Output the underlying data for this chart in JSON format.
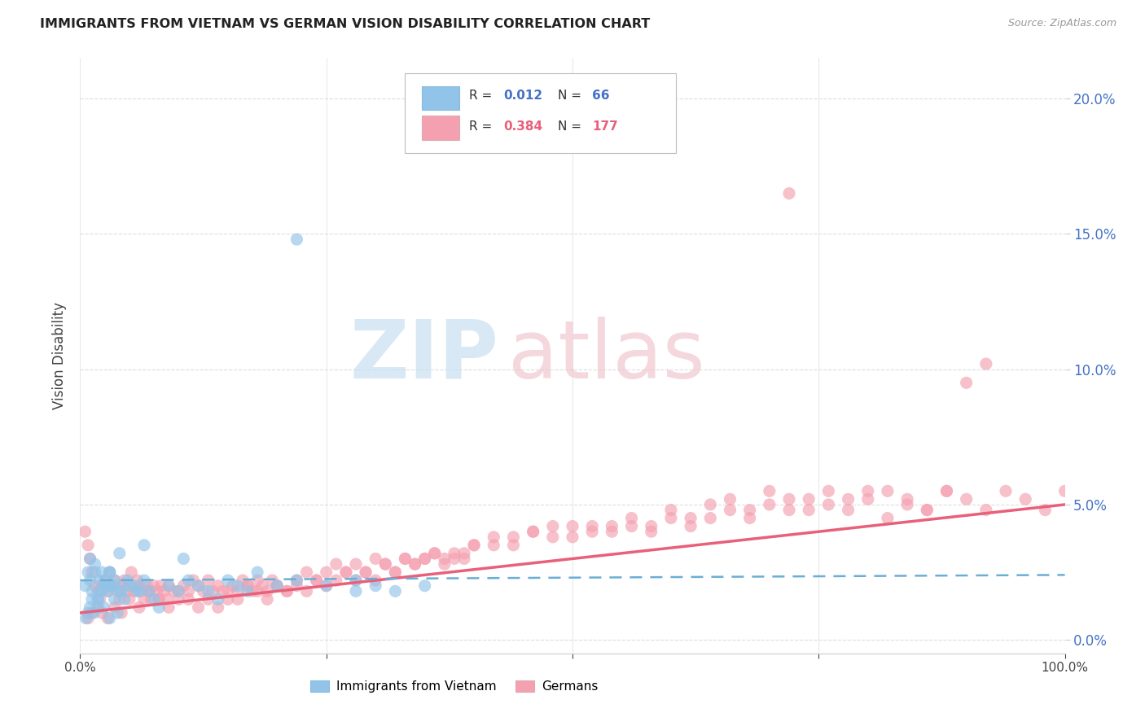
{
  "title": "IMMIGRANTS FROM VIETNAM VS GERMAN VISION DISABILITY CORRELATION CHART",
  "source": "Source: ZipAtlas.com",
  "ylabel": "Vision Disability",
  "xlim": [
    0.0,
    1.0
  ],
  "ylim": [
    -0.005,
    0.215
  ],
  "yticks": [
    0.0,
    0.05,
    0.1,
    0.15,
    0.2
  ],
  "ytick_labels": [
    "0.0%",
    "5.0%",
    "10.0%",
    "15.0%",
    "20.0%"
  ],
  "xticks": [
    0.0,
    0.25,
    0.5,
    0.75,
    1.0
  ],
  "xtick_labels": [
    "0.0%",
    "",
    "",
    "",
    "100.0%"
  ],
  "color_vietnam": "#91c4e8",
  "color_german": "#f4a0b0",
  "color_vietnam_line": "#6aaed6",
  "color_german_line": "#e8607a",
  "background_color": "#ffffff",
  "grid_color": "#dddddd",
  "watermark_zip_color": "#c8dff0",
  "watermark_atlas_color": "#f0c8d0",
  "vietnam_trend_x": [
    0.0,
    1.0
  ],
  "vietnam_trend_y": [
    0.022,
    0.024
  ],
  "german_trend_x": [
    0.0,
    1.0
  ],
  "german_trend_y": [
    0.01,
    0.05
  ],
  "vietnam_scatter_x": [
    0.005,
    0.008,
    0.01,
    0.012,
    0.015,
    0.018,
    0.02,
    0.022,
    0.025,
    0.028,
    0.03,
    0.032,
    0.035,
    0.01,
    0.015,
    0.02,
    0.025,
    0.03,
    0.035,
    0.04,
    0.008,
    0.012,
    0.018,
    0.022,
    0.028,
    0.035,
    0.042,
    0.048,
    0.055,
    0.06,
    0.006,
    0.01,
    0.014,
    0.018,
    0.024,
    0.03,
    0.038,
    0.045,
    0.05,
    0.058,
    0.065,
    0.07,
    0.075,
    0.08,
    0.09,
    0.1,
    0.11,
    0.12,
    0.13,
    0.14,
    0.15,
    0.16,
    0.17,
    0.18,
    0.2,
    0.22,
    0.25,
    0.28,
    0.3,
    0.32,
    0.35,
    0.105,
    0.065,
    0.04,
    0.22,
    0.28
  ],
  "vietnam_scatter_y": [
    0.02,
    0.025,
    0.022,
    0.018,
    0.028,
    0.015,
    0.022,
    0.025,
    0.02,
    0.018,
    0.025,
    0.02,
    0.022,
    0.03,
    0.025,
    0.018,
    0.022,
    0.025,
    0.02,
    0.018,
    0.01,
    0.015,
    0.012,
    0.018,
    0.02,
    0.015,
    0.018,
    0.022,
    0.02,
    0.018,
    0.008,
    0.012,
    0.01,
    0.015,
    0.012,
    0.008,
    0.01,
    0.015,
    0.02,
    0.018,
    0.022,
    0.018,
    0.015,
    0.012,
    0.02,
    0.018,
    0.022,
    0.02,
    0.018,
    0.015,
    0.022,
    0.02,
    0.018,
    0.025,
    0.02,
    0.022,
    0.02,
    0.022,
    0.02,
    0.018,
    0.02,
    0.03,
    0.035,
    0.032,
    0.148,
    0.018
  ],
  "german_scatter_x": [
    0.005,
    0.008,
    0.01,
    0.012,
    0.015,
    0.018,
    0.02,
    0.022,
    0.025,
    0.028,
    0.03,
    0.032,
    0.035,
    0.038,
    0.04,
    0.042,
    0.045,
    0.048,
    0.05,
    0.052,
    0.055,
    0.058,
    0.06,
    0.062,
    0.065,
    0.068,
    0.07,
    0.072,
    0.075,
    0.078,
    0.08,
    0.082,
    0.085,
    0.088,
    0.09,
    0.095,
    0.1,
    0.105,
    0.11,
    0.115,
    0.12,
    0.125,
    0.13,
    0.135,
    0.14,
    0.145,
    0.15,
    0.155,
    0.16,
    0.165,
    0.17,
    0.175,
    0.18,
    0.185,
    0.19,
    0.195,
    0.2,
    0.21,
    0.22,
    0.23,
    0.24,
    0.25,
    0.26,
    0.27,
    0.28,
    0.29,
    0.3,
    0.31,
    0.32,
    0.33,
    0.34,
    0.35,
    0.36,
    0.37,
    0.38,
    0.39,
    0.4,
    0.42,
    0.44,
    0.46,
    0.48,
    0.5,
    0.52,
    0.54,
    0.56,
    0.58,
    0.6,
    0.62,
    0.64,
    0.66,
    0.68,
    0.7,
    0.72,
    0.74,
    0.76,
    0.78,
    0.8,
    0.82,
    0.84,
    0.86,
    0.88,
    0.9,
    0.92,
    0.94,
    0.96,
    0.98,
    1.0,
    0.008,
    0.012,
    0.018,
    0.022,
    0.028,
    0.035,
    0.042,
    0.05,
    0.06,
    0.07,
    0.08,
    0.09,
    0.1,
    0.11,
    0.12,
    0.13,
    0.14,
    0.15,
    0.16,
    0.17,
    0.18,
    0.19,
    0.2,
    0.21,
    0.22,
    0.23,
    0.24,
    0.25,
    0.26,
    0.27,
    0.28,
    0.29,
    0.3,
    0.31,
    0.32,
    0.33,
    0.34,
    0.35,
    0.36,
    0.37,
    0.38,
    0.39,
    0.4,
    0.42,
    0.44,
    0.46,
    0.48,
    0.5,
    0.52,
    0.54,
    0.56,
    0.58,
    0.6,
    0.62,
    0.64,
    0.66,
    0.68,
    0.7,
    0.72,
    0.74,
    0.76,
    0.78,
    0.8,
    0.82,
    0.84,
    0.86,
    0.88,
    0.9,
    0.92,
    0.72
  ],
  "german_scatter_y": [
    0.04,
    0.035,
    0.03,
    0.025,
    0.02,
    0.018,
    0.015,
    0.02,
    0.022,
    0.018,
    0.025,
    0.02,
    0.022,
    0.018,
    0.015,
    0.02,
    0.022,
    0.018,
    0.02,
    0.025,
    0.018,
    0.022,
    0.02,
    0.018,
    0.015,
    0.02,
    0.018,
    0.015,
    0.02,
    0.018,
    0.015,
    0.02,
    0.018,
    0.015,
    0.02,
    0.018,
    0.015,
    0.02,
    0.018,
    0.022,
    0.02,
    0.018,
    0.022,
    0.018,
    0.02,
    0.018,
    0.015,
    0.02,
    0.018,
    0.022,
    0.02,
    0.018,
    0.022,
    0.02,
    0.018,
    0.022,
    0.02,
    0.018,
    0.022,
    0.025,
    0.022,
    0.025,
    0.028,
    0.025,
    0.028,
    0.025,
    0.03,
    0.028,
    0.025,
    0.03,
    0.028,
    0.03,
    0.032,
    0.03,
    0.032,
    0.03,
    0.035,
    0.035,
    0.038,
    0.04,
    0.042,
    0.038,
    0.042,
    0.04,
    0.042,
    0.04,
    0.045,
    0.042,
    0.045,
    0.048,
    0.045,
    0.05,
    0.048,
    0.052,
    0.05,
    0.048,
    0.052,
    0.045,
    0.05,
    0.048,
    0.055,
    0.052,
    0.048,
    0.055,
    0.052,
    0.048,
    0.055,
    0.008,
    0.01,
    0.012,
    0.01,
    0.008,
    0.012,
    0.01,
    0.015,
    0.012,
    0.018,
    0.015,
    0.012,
    0.018,
    0.015,
    0.012,
    0.015,
    0.012,
    0.018,
    0.015,
    0.02,
    0.018,
    0.015,
    0.02,
    0.018,
    0.02,
    0.018,
    0.022,
    0.02,
    0.022,
    0.025,
    0.022,
    0.025,
    0.022,
    0.028,
    0.025,
    0.03,
    0.028,
    0.03,
    0.032,
    0.028,
    0.03,
    0.032,
    0.035,
    0.038,
    0.035,
    0.04,
    0.038,
    0.042,
    0.04,
    0.042,
    0.045,
    0.042,
    0.048,
    0.045,
    0.05,
    0.052,
    0.048,
    0.055,
    0.052,
    0.048,
    0.055,
    0.052,
    0.055,
    0.055,
    0.052,
    0.048,
    0.055,
    0.095,
    0.102,
    0.165
  ]
}
